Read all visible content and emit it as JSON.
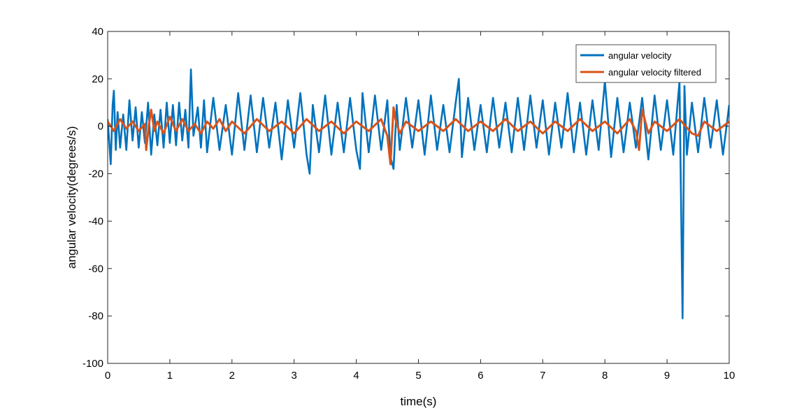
{
  "chart_data": {
    "type": "line",
    "title": "",
    "xlabel": "time(s)",
    "ylabel": "angular velocity(degrees/s)",
    "xlim": [
      0,
      10
    ],
    "ylim": [
      -100,
      40
    ],
    "xticks": [
      0,
      1,
      2,
      3,
      4,
      5,
      6,
      7,
      8,
      9,
      10
    ],
    "yticks": [
      -100,
      -80,
      -60,
      -40,
      -20,
      0,
      20,
      40
    ],
    "grid": false,
    "legend": {
      "position": "top-right"
    },
    "series": [
      {
        "name": "angular velocity",
        "color": "#0072BD",
        "x": [
          0,
          0.05,
          0.08,
          0.1,
          0.13,
          0.16,
          0.2,
          0.25,
          0.3,
          0.35,
          0.4,
          0.45,
          0.5,
          0.55,
          0.6,
          0.65,
          0.7,
          0.75,
          0.8,
          0.85,
          0.9,
          0.95,
          1.0,
          1.05,
          1.1,
          1.15,
          1.2,
          1.25,
          1.3,
          1.34,
          1.38,
          1.45,
          1.5,
          1.55,
          1.6,
          1.7,
          1.8,
          1.9,
          2.0,
          2.1,
          2.2,
          2.3,
          2.4,
          2.5,
          2.6,
          2.7,
          2.8,
          2.9,
          3.0,
          3.1,
          3.2,
          3.25,
          3.3,
          3.4,
          3.5,
          3.6,
          3.7,
          3.8,
          3.9,
          4.0,
          4.06,
          4.1,
          4.2,
          4.3,
          4.4,
          4.5,
          4.55,
          4.6,
          4.65,
          4.7,
          4.8,
          4.9,
          5.0,
          5.1,
          5.2,
          5.3,
          5.4,
          5.5,
          5.6,
          5.65,
          5.7,
          5.8,
          5.9,
          6.0,
          6.1,
          6.2,
          6.3,
          6.4,
          6.5,
          6.6,
          6.7,
          6.8,
          6.9,
          7.0,
          7.1,
          7.2,
          7.3,
          7.4,
          7.5,
          7.6,
          7.7,
          7.8,
          7.9,
          8.0,
          8.1,
          8.2,
          8.3,
          8.4,
          8.5,
          8.6,
          8.7,
          8.8,
          8.9,
          9.0,
          9.1,
          9.2,
          9.25,
          9.28,
          9.32,
          9.4,
          9.5,
          9.6,
          9.7,
          9.8,
          9.9,
          10.0
        ],
        "y": [
          3,
          -16,
          9,
          15,
          -10,
          6,
          -9,
          5,
          -10,
          11,
          -6,
          8,
          -9,
          6,
          -7,
          10,
          -12,
          5,
          -8,
          7,
          -9,
          10,
          -7,
          9,
          -8,
          10,
          -6,
          7,
          -9,
          24,
          -4,
          8,
          -9,
          11,
          -11,
          12,
          -10,
          9,
          -12,
          14,
          -10,
          13,
          -11,
          12,
          -9,
          10,
          -14,
          11,
          -9,
          14,
          -12,
          -20,
          9,
          -11,
          13,
          -12,
          10,
          -11,
          12,
          -10,
          -18,
          14,
          -11,
          13,
          -10,
          11,
          -13,
          -18,
          9,
          -10,
          12,
          -9,
          11,
          -12,
          13,
          -10,
          9,
          -11,
          10,
          20,
          -13,
          12,
          -10,
          9,
          -11,
          12,
          -9,
          10,
          -11,
          12,
          -10,
          13,
          -9,
          11,
          -12,
          10,
          -9,
          14,
          -11,
          10,
          -12,
          11,
          -10,
          19,
          -13,
          12,
          -11,
          10,
          -9,
          12,
          -14,
          13,
          -10,
          11,
          -12,
          19,
          -81,
          17,
          -12,
          10,
          -11,
          12,
          -9,
          11,
          -12,
          9
        ]
      },
      {
        "name": "angular velocity filtered",
        "color": "#D95319",
        "x": [
          0,
          0.1,
          0.2,
          0.3,
          0.4,
          0.5,
          0.6,
          0.62,
          0.66,
          0.7,
          0.75,
          0.8,
          0.9,
          1.0,
          1.1,
          1.2,
          1.3,
          1.4,
          1.5,
          1.6,
          1.7,
          1.8,
          1.9,
          2.0,
          2.2,
          2.4,
          2.6,
          2.8,
          3.0,
          3.2,
          3.4,
          3.6,
          3.8,
          4.0,
          4.2,
          4.4,
          4.5,
          4.55,
          4.6,
          4.63,
          4.7,
          4.8,
          5.0,
          5.2,
          5.4,
          5.6,
          5.8,
          6.0,
          6.2,
          6.4,
          6.6,
          6.8,
          7.0,
          7.2,
          7.4,
          7.6,
          7.8,
          8.0,
          8.2,
          8.4,
          8.5,
          8.55,
          8.6,
          8.65,
          8.7,
          8.8,
          9.0,
          9.2,
          9.4,
          9.5,
          9.6,
          9.8,
          10.0
        ],
        "y": [
          2,
          -2,
          3,
          -1,
          2,
          -2,
          1,
          -10,
          0,
          7,
          -2,
          2,
          -3,
          4,
          -2,
          3,
          -2,
          1,
          -3,
          2,
          -1,
          3,
          -2,
          2,
          -3,
          3,
          -2,
          2,
          -3,
          3,
          -2,
          2,
          -3,
          2,
          -2,
          3,
          -4,
          -16,
          8,
          3,
          -3,
          2,
          -2,
          2,
          -2,
          3,
          -2,
          2,
          -2,
          3,
          -2,
          2,
          -3,
          2,
          -2,
          3,
          -2,
          2,
          -3,
          3,
          -2,
          -10,
          7,
          2,
          -3,
          2,
          -2,
          3,
          -3,
          -4,
          2,
          -2,
          2
        ]
      }
    ]
  }
}
